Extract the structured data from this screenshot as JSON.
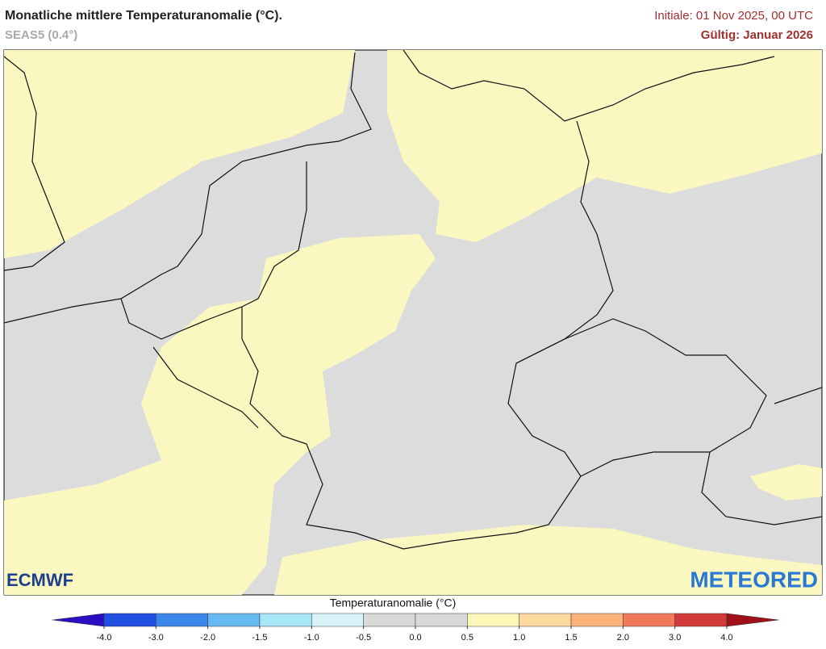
{
  "header": {
    "title": "Monatliche mittlere Temperaturanomalie (°C).",
    "subtitle": "SEAS5 (0.4°)",
    "initial": "Initiale: 01 Nov 2025, 00 UTC",
    "valid": "Gültig: Januar 2026"
  },
  "logos": {
    "left": "ECMWF",
    "right": "METEORED"
  },
  "colorbar": {
    "label": "Temperaturanomalie (°C)",
    "ticks": [
      {
        "value": -4,
        "label": "-4.0"
      },
      {
        "value": -3,
        "label": "-3.0"
      },
      {
        "value": -2,
        "label": "-2.0"
      },
      {
        "value": -1.5,
        "label": "-1.5"
      },
      {
        "value": -1,
        "label": "-1.0"
      },
      {
        "value": -0.5,
        "label": "-0.5"
      },
      {
        "value": 0,
        "label": "0.0"
      },
      {
        "value": 0.5,
        "label": "0.5"
      },
      {
        "value": 1,
        "label": "1.0"
      },
      {
        "value": 1.5,
        "label": "1.5"
      },
      {
        "value": 2,
        "label": "2.0"
      },
      {
        "value": 3,
        "label": "3.0"
      },
      {
        "value": 4,
        "label": "4.0"
      }
    ],
    "colors": [
      "#2a0fc0",
      "#1f4ee0",
      "#3a86ea",
      "#66b8f0",
      "#a6e6f6",
      "#d8f4f8",
      "#d9d9d9",
      "#d9d9d9",
      "#fdf8b8",
      "#fbd9a0",
      "#f8b27a",
      "#f07a5a",
      "#d43a3a",
      "#a0101a"
    ]
  }
}
